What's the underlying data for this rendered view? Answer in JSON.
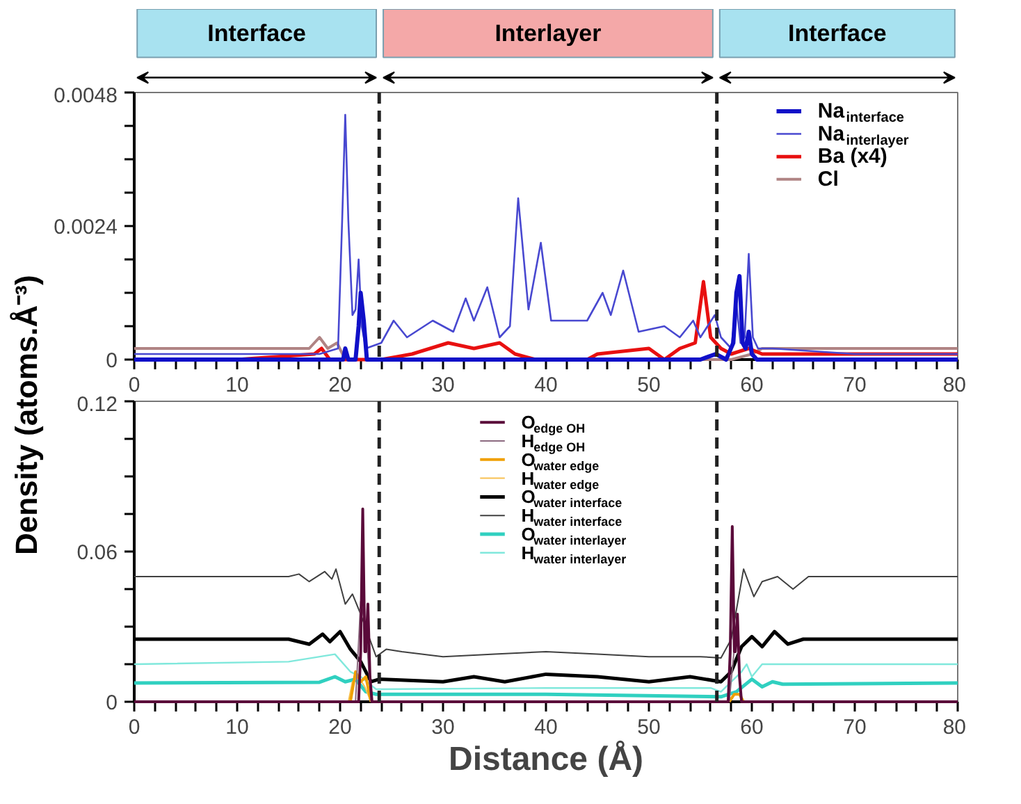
{
  "chart_data": [
    {
      "type": "line",
      "ylabel": "Density (atoms.Å⁻³)",
      "xlim": [
        0,
        80
      ],
      "ylim": [
        0,
        0.0048
      ],
      "xticks": [
        0,
        {
          "value": 2,
          "label": null
        },
        {
          "value": 4,
          "label": null
        },
        {
          "value": 6,
          "label": null
        },
        {
          "value": 8,
          "label": null
        },
        10,
        {
          "value": 12,
          "label": null
        },
        {
          "value": 14,
          "label": null
        },
        {
          "value": 16,
          "label": null
        },
        {
          "value": 18,
          "label": null
        },
        20,
        {
          "value": 22,
          "label": null
        },
        {
          "value": 24,
          "label": null
        },
        {
          "value": 26,
          "label": null
        },
        {
          "value": 28,
          "label": null
        },
        30,
        {
          "value": 32,
          "label": null
        },
        {
          "value": 34,
          "label": null
        },
        {
          "value": 36,
          "label": null
        },
        {
          "value": 38,
          "label": null
        },
        40,
        {
          "value": 42,
          "label": null
        },
        {
          "value": 44,
          "label": null
        },
        {
          "value": 46,
          "label": null
        },
        {
          "value": 48,
          "label": null
        },
        50,
        {
          "value": 52,
          "label": null
        },
        {
          "value": 54,
          "label": null
        },
        {
          "value": 56,
          "label": null
        },
        {
          "value": 58,
          "label": null
        },
        60,
        {
          "value": 62,
          "label": null
        },
        {
          "value": 64,
          "label": null
        },
        {
          "value": 66,
          "label": null
        },
        {
          "value": 68,
          "label": null
        },
        70,
        {
          "value": 72,
          "label": null
        },
        {
          "value": 74,
          "label": null
        },
        {
          "value": 76,
          "label": null
        },
        {
          "value": 78,
          "label": null
        },
        80
      ],
      "yticks": [
        0,
        {
          "value": 0.0006,
          "label": null
        },
        {
          "value": 0.0012,
          "label": null
        },
        {
          "value": 0.0018,
          "label": null
        },
        0.0024,
        {
          "value": 0.003,
          "label": null
        },
        {
          "value": 0.0036,
          "label": null
        },
        {
          "value": 0.0042,
          "label": null
        },
        0.0048
      ],
      "grid": false,
      "legend": "top right",
      "line_style": "solid",
      "annotations": [
        "Interface",
        "Interlayer",
        "Interface"
      ],
      "ref_lines": [
        {
          "axis": "x",
          "value": 23.8,
          "line_style": "dashed",
          "color": "#222222"
        },
        {
          "axis": "x",
          "value": 56.6,
          "line_style": "dashed",
          "color": "#222222"
        }
      ],
      "series": [
        {
          "name": "Na$_{interface}$",
          "color": "#1010c8",
          "x": [
            0,
            10,
            19,
            20.3,
            20.5,
            20.8,
            21.5,
            21.8,
            22.0,
            22.3,
            22.6,
            24,
            40,
            55,
            56.5,
            57.5,
            58.2,
            58.5,
            58.8,
            59.1,
            59.4,
            59.7,
            60.0,
            60.5,
            70,
            80
          ],
          "values": [
            0,
            0,
            0,
            0,
            0.0002,
            0,
            0,
            0.0006,
            0.0012,
            0.0007,
            0,
            0,
            0,
            0,
            0.0001,
            0,
            0.0003,
            0.0012,
            0.0015,
            0.0003,
            0.0002,
            0.0005,
            0.0001,
            0,
            0,
            0
          ]
        },
        {
          "name": "Na$_{interlayer}$",
          "color": "#4848d0",
          "x": [
            0,
            10,
            18,
            19.8,
            20.2,
            20.5,
            20.8,
            21.2,
            21.5,
            21.8,
            22.1,
            22.5,
            24,
            25.2,
            26.5,
            29,
            31,
            32.2,
            33,
            34.3,
            35.5,
            36.5,
            37.3,
            38.3,
            39.5,
            40.5,
            42,
            44,
            45.5,
            46.3,
            47.5,
            49,
            51.5,
            53,
            54.3,
            55,
            56.4,
            57,
            58,
            58.5,
            58.9,
            59.3,
            59.7,
            60.1,
            60.6,
            62,
            70,
            80
          ],
          "values": [
            0.0001,
            0.0001,
            0.0001,
            0.0002,
            0.0025,
            0.0044,
            0.0025,
            0.0008,
            0.0009,
            0.0018,
            0.0006,
            0.0002,
            0.0003,
            0.0007,
            0.0004,
            0.0007,
            0.0005,
            0.0011,
            0.0007,
            0.0013,
            0.0004,
            0.0006,
            0.0029,
            0.0009,
            0.0021,
            0.0007,
            0.0007,
            0.0007,
            0.0012,
            0.0008,
            0.0016,
            0.0005,
            0.0006,
            0.0004,
            0.0007,
            0.0004,
            0.0008,
            0.0004,
            0.0002,
            0.001,
            0.0003,
            0.0004,
            0.0019,
            0.0004,
            0.0002,
            0.0002,
            0.0001,
            0.0001
          ]
        },
        {
          "name": "Ba (x4)",
          "color": "#e81010",
          "x": [
            0,
            10,
            17.5,
            18.2,
            19,
            20,
            22,
            24,
            27,
            30.5,
            33,
            35.5,
            37,
            39,
            44,
            45,
            50,
            51.5,
            53,
            54.5,
            55.3,
            56,
            57,
            58,
            59.7,
            61,
            70,
            80
          ],
          "values": [
            0,
            0,
            0.0001,
            0.0002,
            0,
            0,
            0,
            0,
            0.0001,
            0.0003,
            0.0002,
            0.0003,
            0.0001,
            0,
            0,
            0.0001,
            0.0002,
            0,
            0.0002,
            0.0003,
            0.0014,
            0.0004,
            0.0002,
            0.0001,
            0.0002,
            0.0001,
            0.0001,
            0.0001
          ]
        },
        {
          "name": "Cl",
          "color": "#b08484",
          "x": [
            0,
            10,
            15,
            17,
            18,
            18.8,
            19.7,
            20.5,
            22,
            40,
            58,
            60,
            61,
            70,
            80
          ],
          "values": [
            0.0002,
            0.0002,
            0.0002,
            0.0002,
            0.0004,
            0.0002,
            0.0003,
            0,
            0,
            0,
            0,
            0.0001,
            0.0002,
            0.0002,
            0.0002
          ]
        }
      ]
    },
    {
      "type": "line",
      "xlabel": "Distance (Å)",
      "xlim": [
        0,
        80
      ],
      "ylim": [
        0,
        0.12
      ],
      "xticks": [
        0,
        {
          "value": 2,
          "label": null
        },
        {
          "value": 4,
          "label": null
        },
        {
          "value": 6,
          "label": null
        },
        {
          "value": 8,
          "label": null
        },
        10,
        {
          "value": 12,
          "label": null
        },
        {
          "value": 14,
          "label": null
        },
        {
          "value": 16,
          "label": null
        },
        {
          "value": 18,
          "label": null
        },
        20,
        {
          "value": 22,
          "label": null
        },
        {
          "value": 24,
          "label": null
        },
        {
          "value": 26,
          "label": null
        },
        {
          "value": 28,
          "label": null
        },
        30,
        {
          "value": 32,
          "label": null
        },
        {
          "value": 34,
          "label": null
        },
        {
          "value": 36,
          "label": null
        },
        {
          "value": 38,
          "label": null
        },
        40,
        {
          "value": 42,
          "label": null
        },
        {
          "value": 44,
          "label": null
        },
        {
          "value": 46,
          "label": null
        },
        {
          "value": 48,
          "label": null
        },
        50,
        {
          "value": 52,
          "label": null
        },
        {
          "value": 54,
          "label": null
        },
        {
          "value": 56,
          "label": null
        },
        {
          "value": 58,
          "label": null
        },
        60,
        {
          "value": 62,
          "label": null
        },
        {
          "value": 64,
          "label": null
        },
        {
          "value": 66,
          "label": null
        },
        {
          "value": 68,
          "label": null
        },
        70,
        {
          "value": 72,
          "label": null
        },
        {
          "value": 74,
          "label": null
        },
        {
          "value": 76,
          "label": null
        },
        {
          "value": 78,
          "label": null
        },
        80
      ],
      "yticks": [
        0,
        {
          "value": 0.015,
          "label": null
        },
        {
          "value": 0.03,
          "label": null
        },
        {
          "value": 0.045,
          "label": null
        },
        0.06,
        {
          "value": 0.075,
          "label": null
        },
        {
          "value": 0.09,
          "label": null
        },
        {
          "value": 0.105,
          "label": null
        },
        0.12
      ],
      "grid": false,
      "legend": "top",
      "line_style": "solid",
      "ref_lines": [
        {
          "axis": "x",
          "value": 23.8,
          "line_style": "dashed",
          "color": "#222222"
        },
        {
          "axis": "x",
          "value": 56.6,
          "line_style": "dashed",
          "color": "#222222"
        }
      ],
      "series": [
        {
          "name": "O$_{edge OH}$",
          "color": "#5a0a3a",
          "x": [
            0,
            21.8,
            22.0,
            22.2,
            22.4,
            22.5,
            22.7,
            22.9,
            23.1,
            57.7,
            57.9,
            58.1,
            58.3,
            58.4,
            58.6,
            58.8,
            59,
            80
          ],
          "values": [
            0,
            0,
            0.02,
            0.077,
            0.02,
            0.02,
            0.039,
            0.01,
            0,
            0,
            0.02,
            0.07,
            0.02,
            0.02,
            0.035,
            0.01,
            0,
            0
          ]
        },
        {
          "name": "H$_{edge OH}$",
          "color": "#8c6a80",
          "x": [
            21.5,
            22,
            22.5,
            23,
            40,
            57.8,
            58.5,
            59
          ],
          "values": [
            0,
            0.04,
            0.03,
            0,
            null,
            0,
            0.03,
            0
          ]
        },
        {
          "name": "O$_{water edge}$",
          "color": "#f0a000",
          "x": [
            21,
            21.5,
            22,
            22.5,
            23,
            40,
            57.8,
            58.3,
            58.8,
            59.2
          ],
          "values": [
            0,
            0.012,
            0.008,
            0.01,
            0,
            null,
            0,
            0.003,
            0.003,
            0
          ]
        },
        {
          "name": "H$_{water edge}$",
          "color": "#f8c050",
          "x": [
            20.8,
            21.2,
            21.8,
            22.4,
            23
          ],
          "values": [
            0,
            0.008,
            0.01,
            0.006,
            0
          ]
        },
        {
          "name": "O$_{water interface}$",
          "color": "#000000",
          "x": [
            0,
            15,
            17,
            18.3,
            19,
            20,
            21,
            22,
            23,
            23.8,
            30,
            33,
            36,
            40,
            45,
            50,
            54,
            57,
            58,
            59,
            60,
            61,
            62.2,
            63.5,
            65,
            80
          ],
          "values": [
            0.025,
            0.025,
            0.023,
            0.027,
            0.024,
            0.028,
            0.021,
            0.016,
            0.008,
            0.009,
            0.008,
            0.01,
            0.008,
            0.011,
            0.01,
            0.008,
            0.01,
            0.008,
            0.012,
            0.022,
            0.026,
            0.022,
            0.028,
            0.023,
            0.025,
            0.025
          ]
        },
        {
          "name": "H$_{water interface}$",
          "color": "#404040",
          "x": [
            0,
            15,
            16,
            17,
            18.5,
            19.2,
            19.6,
            20.5,
            21.2,
            22,
            23.5,
            24.5,
            26,
            30,
            35,
            40,
            45,
            50,
            55,
            57,
            58,
            59.2,
            60.2,
            61,
            62.5,
            64,
            65.5,
            80
          ],
          "values": [
            0.05,
            0.05,
            0.051,
            0.048,
            0.052,
            0.049,
            0.053,
            0.039,
            0.043,
            0.035,
            0.018,
            0.021,
            0.02,
            0.018,
            0.019,
            0.02,
            0.019,
            0.018,
            0.018,
            0.0175,
            0.025,
            0.053,
            0.042,
            0.048,
            0.05,
            0.045,
            0.05,
            0.05
          ]
        },
        {
          "name": "O$_{water interlayer}$",
          "color": "#30d0c0",
          "x": [
            0,
            18,
            19.5,
            20.5,
            21.5,
            22.5,
            23.5,
            40,
            57,
            58.5,
            60,
            61,
            62,
            63,
            80
          ],
          "values": [
            0.0075,
            0.0078,
            0.01,
            0.008,
            0.009,
            0.004,
            0.003,
            0.003,
            0.002,
            0.004,
            0.009,
            0.006,
            0.008,
            0.007,
            0.0075
          ]
        },
        {
          "name": "H$_{water interlayer}$",
          "color": "#80e8dc",
          "x": [
            0,
            15,
            19.5,
            21,
            22,
            23.5,
            40,
            56,
            57,
            59,
            59.5,
            60,
            61,
            80
          ],
          "values": [
            0.015,
            0.016,
            0.019,
            0.012,
            0.01,
            0.005,
            0.0055,
            0.0055,
            0.004,
            0.012,
            0.015,
            0.01,
            0.015,
            0.015
          ]
        }
      ]
    }
  ]
}
